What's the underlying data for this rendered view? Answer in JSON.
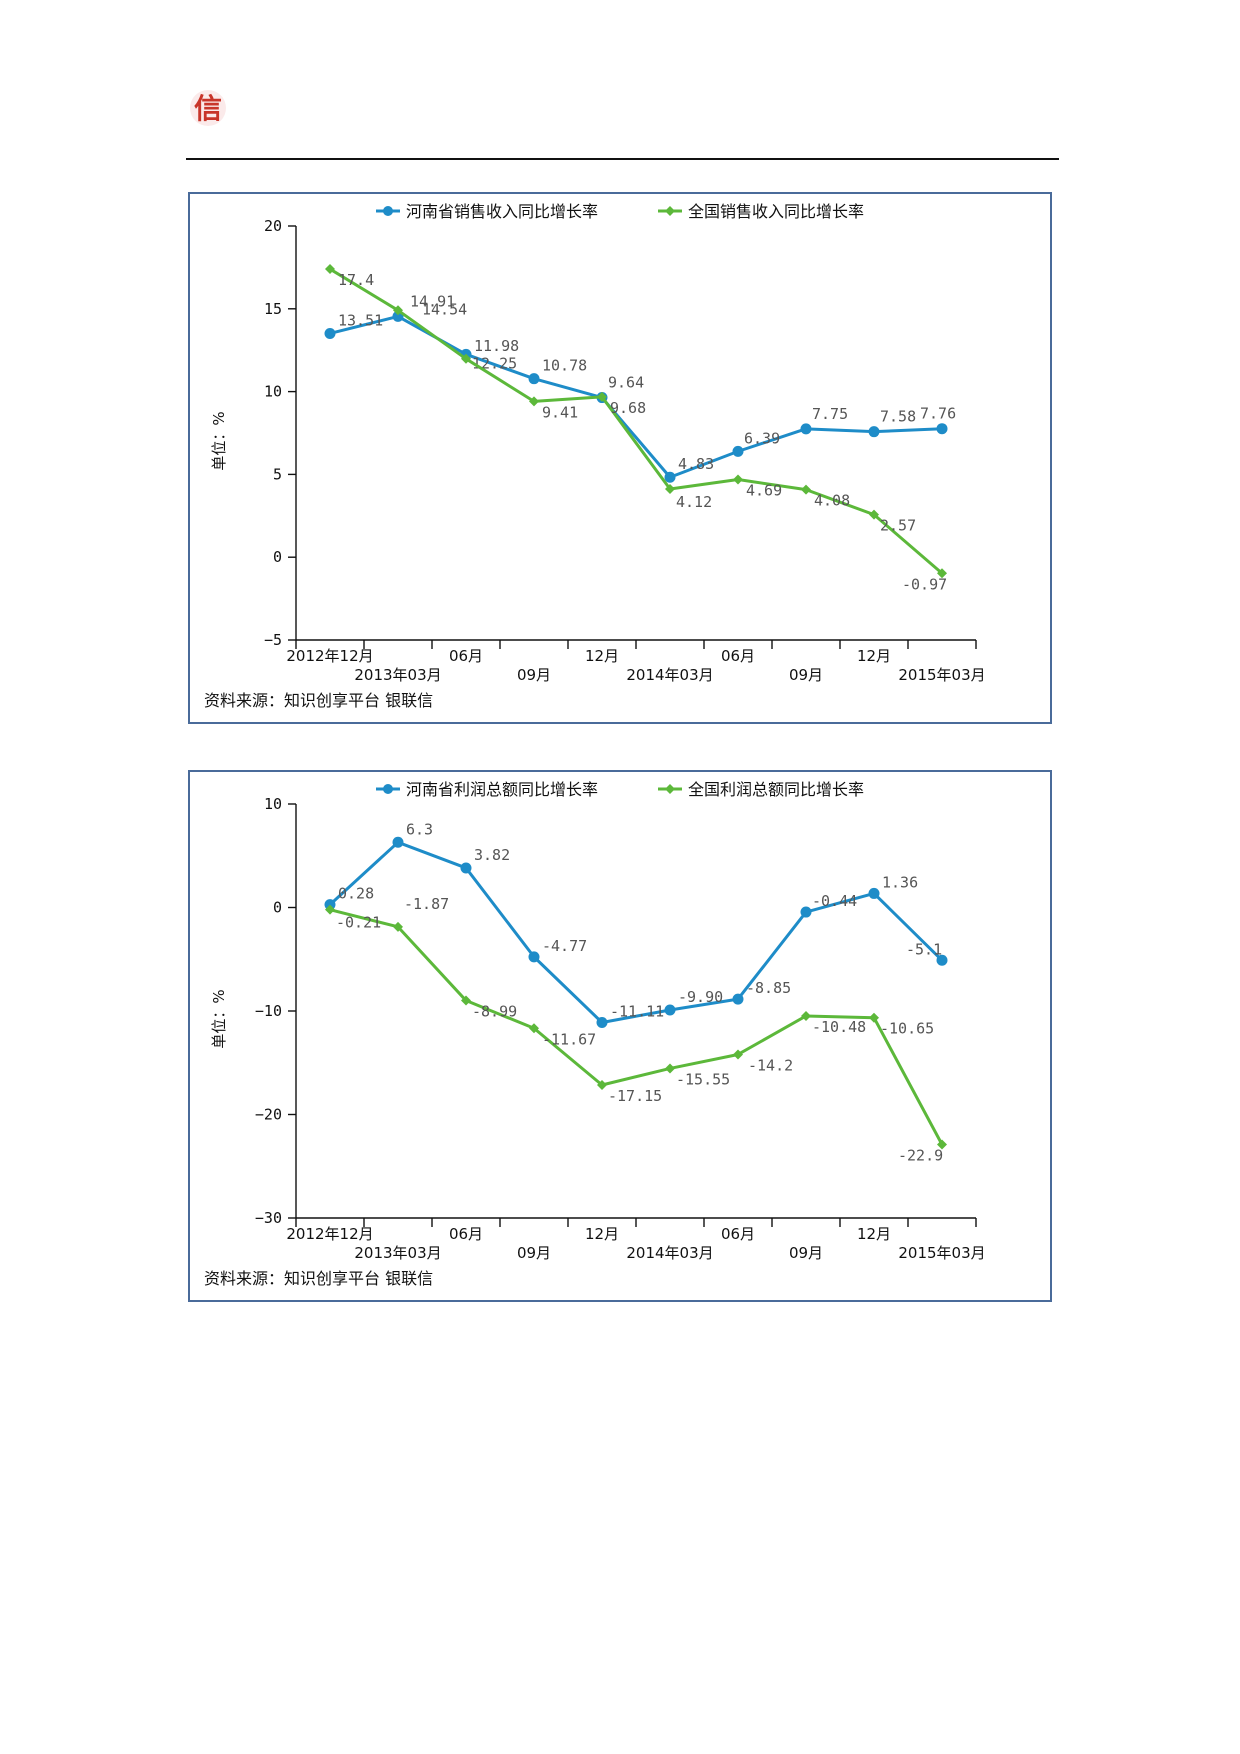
{
  "colors": {
    "henan": "#1e8cc8",
    "national": "#5cb83a",
    "logo": "#c8352a",
    "border": "#4a6b9a"
  },
  "logo": {
    "glyph": "信"
  },
  "chart_data": [
    {
      "type": "line",
      "categories": [
        "2012年12月",
        "2013年03月",
        "06月",
        "09月",
        "12月",
        "2014年03月",
        "06月",
        "09月",
        "12月",
        "2015年03月"
      ],
      "series": [
        {
          "name": "河南省销售收入同比增长率",
          "marker": "circle",
          "color": "#1e8cc8",
          "values": [
            13.51,
            14.54,
            12.25,
            10.78,
            9.64,
            4.83,
            6.39,
            7.75,
            7.58,
            7.76
          ],
          "labels": [
            "13.51",
            "14.54",
            "12.25",
            "10.78",
            "9.64",
            "4.83",
            "6.39",
            "7.75",
            "7.58",
            "7.76"
          ]
        },
        {
          "name": "全国销售收入同比增长率",
          "marker": "diamond",
          "color": "#5cb83a",
          "values": [
            17.4,
            14.91,
            11.98,
            9.41,
            9.68,
            4.12,
            4.69,
            4.08,
            2.57,
            -0.97
          ],
          "labels": [
            "17.4",
            "14.91",
            "11.98",
            "9.41",
            "9.68",
            "4.12",
            "4.69",
            "4.08",
            "2.57",
            "-0.97"
          ]
        }
      ],
      "ylabel": "单位：%",
      "ylim": [
        -5,
        20
      ],
      "yticks": [
        -5,
        0,
        5,
        10,
        15,
        20
      ],
      "grid": false,
      "legend": "top",
      "source": "资料来源：知识创享平台 银联信"
    },
    {
      "type": "line",
      "categories": [
        "2012年12月",
        "2013年03月",
        "06月",
        "09月",
        "12月",
        "2014年03月",
        "06月",
        "09月",
        "12月",
        "2015年03月"
      ],
      "series": [
        {
          "name": "河南省利润总额同比增长率",
          "marker": "circle",
          "color": "#1e8cc8",
          "values": [
            0.28,
            6.3,
            3.82,
            -4.77,
            -11.11,
            -9.9,
            -8.85,
            -0.44,
            1.36,
            -5.1
          ],
          "labels": [
            "0.28",
            "6.3",
            "3.82",
            "-4.77",
            "-11.11",
            "-9.90",
            "-8.85",
            "-0.44",
            "1.36",
            "-5.1"
          ]
        },
        {
          "name": "全国利润总额同比增长率",
          "marker": "diamond",
          "color": "#5cb83a",
          "values": [
            -0.21,
            -1.87,
            -8.99,
            -11.67,
            -17.15,
            -15.55,
            -14.2,
            -10.48,
            -10.65,
            -22.9
          ],
          "labels": [
            "-0.21",
            "-1.87",
            "-8.99",
            "-11.67",
            "-17.15",
            "-15.55",
            "-14.2",
            "-10.48",
            "-10.65",
            "-22.9"
          ]
        }
      ],
      "ylabel": "单位：%",
      "ylim": [
        -30,
        10
      ],
      "yticks": [
        -30,
        -20,
        -10,
        0,
        10
      ],
      "grid": false,
      "legend": "top",
      "source": "资料来源：知识创享平台 银联信"
    }
  ]
}
